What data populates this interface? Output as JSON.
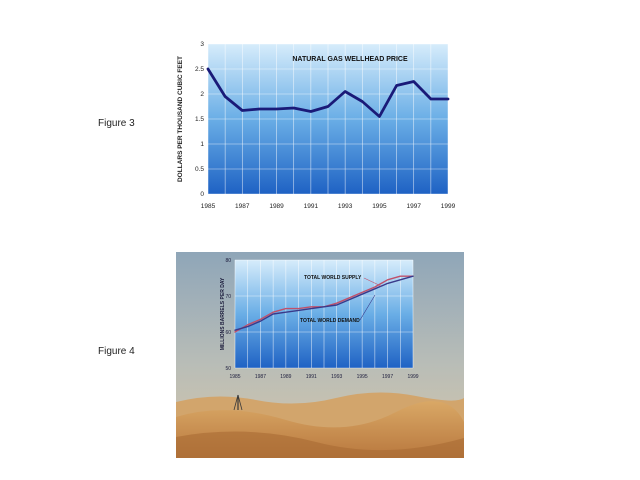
{
  "labels": {
    "figure3": "Figure 3",
    "figure4": "Figure 4"
  },
  "chart_data": [
    {
      "type": "line",
      "title": "NATURAL GAS WELLHEAD PRICE",
      "xlabel": "",
      "ylabel": "DOLLARS PER THOUSAND CUBIC FEET",
      "xlim": [
        1985,
        1999
      ],
      "ylim": [
        0,
        3
      ],
      "x": [
        1985,
        1986,
        1987,
        1988,
        1989,
        1990,
        1991,
        1992,
        1993,
        1994,
        1995,
        1996,
        1997,
        1998,
        1999
      ],
      "y_ticks": [
        0,
        0.5,
        1,
        1.5,
        2,
        2.5,
        3
      ],
      "y_tick_labels": [
        "0",
        "0.5",
        "1",
        "1.5",
        "2",
        "2.5",
        "3"
      ],
      "x_ticks": [
        1985,
        1987,
        1989,
        1991,
        1993,
        1995,
        1997,
        1999
      ],
      "x_tick_labels": [
        "1985",
        "1987",
        "1989",
        "1991",
        "1993",
        "1995",
        "1997",
        "1999"
      ],
      "series": [
        {
          "values": [
            2.5,
            1.95,
            1.67,
            1.7,
            1.7,
            1.72,
            1.65,
            1.75,
            2.05,
            1.85,
            1.55,
            2.17,
            2.25,
            1.9,
            1.9
          ]
        }
      ],
      "colors": {
        "line": "#1a1a78"
      }
    },
    {
      "type": "line",
      "title": "",
      "xlabel": "",
      "ylabel": "MILLIONS BARRELS PER DAY",
      "xlim": [
        1985,
        1999
      ],
      "ylim": [
        50,
        80
      ],
      "x": [
        1985,
        1986,
        1987,
        1988,
        1989,
        1990,
        1991,
        1992,
        1993,
        1994,
        1995,
        1996,
        1997,
        1998,
        1999
      ],
      "y_ticks": [
        50,
        60,
        70,
        80
      ],
      "y_tick_labels": [
        "50",
        "60",
        "70",
        "80"
      ],
      "x_ticks": [
        1985,
        1987,
        1989,
        1991,
        1993,
        1995,
        1997,
        1999
      ],
      "x_tick_labels": [
        "1985",
        "1987",
        "1989",
        "1991",
        "1993",
        "1995",
        "1997",
        "1999"
      ],
      "series": [
        {
          "name": "TOTAL WORLD SUPPLY",
          "values": [
            60,
            62,
            63.5,
            65.5,
            66.5,
            66.5,
            67,
            67,
            68,
            69.5,
            71,
            72.5,
            74.5,
            75.5,
            75.5
          ]
        },
        {
          "name": "TOTAL WORLD DEMAND",
          "values": [
            60.5,
            61.5,
            63,
            65,
            65.5,
            66,
            66.5,
            67,
            67.5,
            69,
            70.5,
            72,
            73.5,
            74.5,
            75.5
          ]
        }
      ],
      "colors": {
        "supply": "#c0506a",
        "demand": "#3a3a8a"
      }
    }
  ]
}
